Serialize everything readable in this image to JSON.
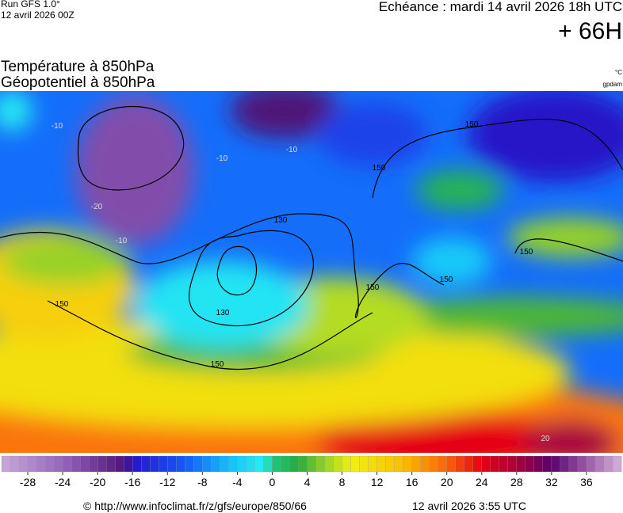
{
  "header": {
    "run": "Run GFS 1.0°",
    "run_date": "12 avril 2026 00Z",
    "forecast": "Echéance : mardi 14 avril 2026 18h UTC",
    "lead": "+ 66H"
  },
  "titles": [
    "Température à 850hPa",
    "Géopotentiel à 850hPa"
  ],
  "units": [
    "°C",
    "gpdam"
  ],
  "map": {
    "geopotential_labels": [
      150,
      150,
      130,
      130,
      150,
      150,
      150,
      150,
      150
    ],
    "temperature_labels": [
      -10,
      -20,
      -10,
      -10,
      -10,
      20
    ]
  },
  "legend": {
    "range": [
      -31,
      40
    ],
    "ticks": [
      -28,
      -24,
      -20,
      -16,
      -12,
      -8,
      -4,
      0,
      4,
      8,
      12,
      16,
      20,
      24,
      28,
      32,
      36
    ]
  },
  "footer": {
    "source": "© http://www.infoclimat.fr/z/gfs/europe/850/66",
    "date": "12 avril 2026  3:55 UTC"
  }
}
